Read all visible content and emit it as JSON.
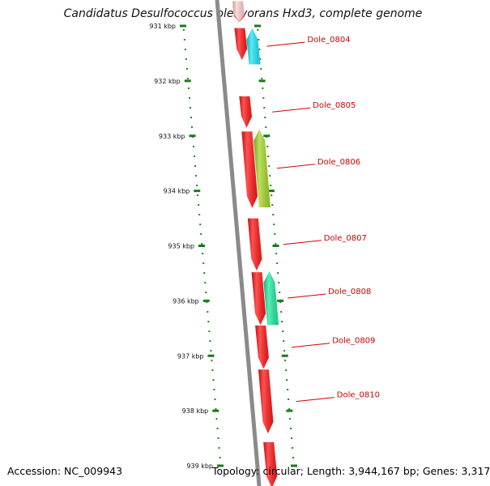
{
  "title": "Candidatus Desulfococcus oleovorans Hxd3, complete genome",
  "footer": {
    "accession": "Accession: NC_009943",
    "summary": "Topology: circular; Length: 3,944,167 bp; Genes: 3,317"
  },
  "ticks": [
    {
      "label": "931 kbp",
      "kbp": 931
    },
    {
      "label": "932 kbp",
      "kbp": 932
    },
    {
      "label": "933 kbp",
      "kbp": 933
    },
    {
      "label": "934 kbp",
      "kbp": 934
    },
    {
      "label": "935 kbp",
      "kbp": 935
    },
    {
      "label": "936 kbp",
      "kbp": 936
    },
    {
      "label": "937 kbp",
      "kbp": 937
    },
    {
      "label": "938 kbp",
      "kbp": 938
    },
    {
      "label": "939 kbp",
      "kbp": 939
    }
  ],
  "genes": [
    {
      "id": "g0",
      "strand": "+",
      "start_kbp": 930.63,
      "end_kbp": 930.93,
      "color": "#ff3b3b",
      "label": ""
    },
    {
      "id": "g0b",
      "strand": "+",
      "start_kbp": 930.55,
      "end_kbp": 930.92,
      "color": "#ffd0d0",
      "label": ""
    },
    {
      "id": "Dole_0804a",
      "strand": "+",
      "start_kbp": 931.04,
      "end_kbp": 931.62,
      "color": "#ff1a1a",
      "label": ""
    },
    {
      "id": "Dole_0804",
      "strand": "-",
      "start_kbp": 931.04,
      "end_kbp": 931.7,
      "color": "#22e3f5",
      "label": "Dole_0804"
    },
    {
      "id": "Dole_0805",
      "strand": "+",
      "start_kbp": 932.28,
      "end_kbp": 932.85,
      "color": "#ff1a1a",
      "label": "Dole_0805"
    },
    {
      "id": "Dole_0806a",
      "strand": "+",
      "start_kbp": 932.92,
      "end_kbp": 934.31,
      "color": "#ff1a1a",
      "label": ""
    },
    {
      "id": "Dole_0806",
      "strand": "-",
      "start_kbp": 932.88,
      "end_kbp": 934.3,
      "color": "#a6d62a",
      "label": "Dole_0806"
    },
    {
      "id": "Dole_0807",
      "strand": "+",
      "start_kbp": 934.5,
      "end_kbp": 935.45,
      "color": "#ff1a1a",
      "label": "Dole_0807"
    },
    {
      "id": "Dole_0808a",
      "strand": "+",
      "start_kbp": 935.48,
      "end_kbp": 936.44,
      "color": "#ff1a1a",
      "label": ""
    },
    {
      "id": "Dole_0808",
      "strand": "-",
      "start_kbp": 935.46,
      "end_kbp": 936.44,
      "color": "#22e8a0",
      "label": "Dole_0808"
    },
    {
      "id": "Dole_0809",
      "strand": "+",
      "start_kbp": 936.45,
      "end_kbp": 937.24,
      "color": "#ff1a1a",
      "label": "Dole_0809"
    },
    {
      "id": "Dole_0810",
      "strand": "+",
      "start_kbp": 937.25,
      "end_kbp": 938.41,
      "color": "#ff1a1a",
      "label": "Dole_0810"
    },
    {
      "id": "g_end",
      "strand": "+",
      "start_kbp": 938.57,
      "end_kbp": 939.4,
      "color": "#ff1a1a",
      "label": ""
    }
  ]
}
